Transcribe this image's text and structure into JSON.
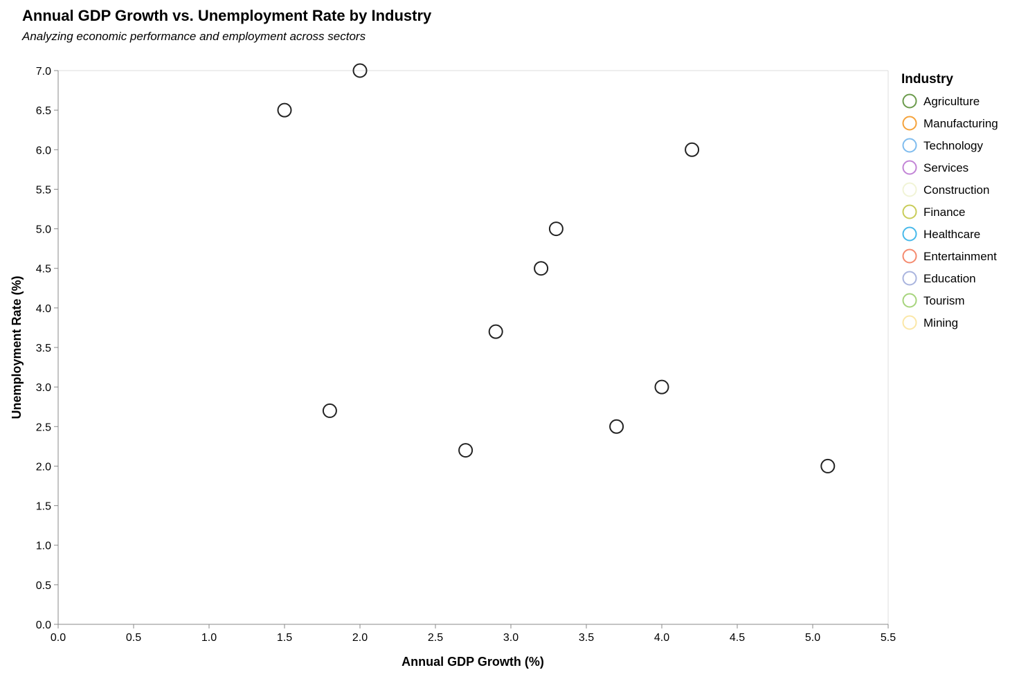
{
  "chart_data": {
    "type": "scatter",
    "title": "Annual GDP Growth vs. Unemployment Rate by Industry",
    "subtitle": "Analyzing economic performance and employment across sectors",
    "xlabel": "Annual GDP Growth (%)",
    "ylabel": "Unemployment Rate (%)",
    "xlim": [
      0,
      5.5
    ],
    "ylim": [
      0,
      7.0
    ],
    "x_ticks": [
      "0.0",
      "0.5",
      "1.0",
      "1.5",
      "2.0",
      "2.5",
      "3.0",
      "3.5",
      "4.0",
      "4.5",
      "5.0",
      "5.5"
    ],
    "y_ticks": [
      "0.0",
      "0.5",
      "1.0",
      "1.5",
      "2.0",
      "2.5",
      "3.0",
      "3.5",
      "4.0",
      "4.5",
      "5.0",
      "5.5",
      "6.0",
      "6.5",
      "7.0"
    ],
    "grid": false,
    "legend": {
      "title": "Industry",
      "placement": "right",
      "entries": [
        {
          "name": "Agriculture",
          "color": "#6a9a4b"
        },
        {
          "name": "Manufacturing",
          "color": "#f5a23a"
        },
        {
          "name": "Technology",
          "color": "#7fbcee"
        },
        {
          "name": "Services",
          "color": "#c284d6"
        },
        {
          "name": "Construction",
          "color": "#f1f4d6"
        },
        {
          "name": "Finance",
          "color": "#c8cc58"
        },
        {
          "name": "Healthcare",
          "color": "#47b9ea"
        },
        {
          "name": "Entertainment",
          "color": "#f58a6e"
        },
        {
          "name": "Education",
          "color": "#a9b4de"
        },
        {
          "name": "Tourism",
          "color": "#a6d47c"
        },
        {
          "name": "Mining",
          "color": "#fbe7a7"
        }
      ]
    },
    "marker_color": "#222222",
    "points": [
      {
        "x": 1.5,
        "y": 6.5
      },
      {
        "x": 2.0,
        "y": 7.0
      },
      {
        "x": 4.2,
        "y": 6.0
      },
      {
        "x": 3.3,
        "y": 5.0
      },
      {
        "x": 3.2,
        "y": 4.5
      },
      {
        "x": 2.9,
        "y": 3.7
      },
      {
        "x": 4.0,
        "y": 3.0
      },
      {
        "x": 1.8,
        "y": 2.7
      },
      {
        "x": 3.7,
        "y": 2.5
      },
      {
        "x": 2.7,
        "y": 2.2
      },
      {
        "x": 5.1,
        "y": 2.0
      }
    ]
  }
}
